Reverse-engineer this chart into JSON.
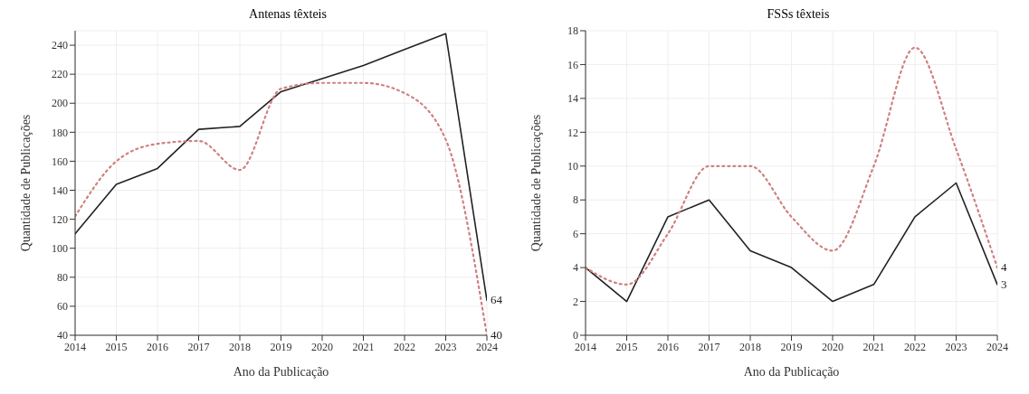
{
  "chart_data": [
    {
      "type": "line",
      "title": "Antenas têxteis",
      "xlabel": "Ano da Publicação",
      "ylabel": "Quantidade de Publicações",
      "x": [
        2014,
        2015,
        2016,
        2017,
        2018,
        2019,
        2020,
        2021,
        2022,
        2023,
        2024
      ],
      "xlim": [
        2014,
        2024
      ],
      "xticks": [
        2014,
        2015,
        2016,
        2017,
        2018,
        2019,
        2020,
        2021,
        2022,
        2023,
        2024
      ],
      "ylim": [
        40,
        250
      ],
      "yticks": [
        40,
        60,
        80,
        100,
        120,
        140,
        160,
        180,
        200,
        220,
        240
      ],
      "grid": true,
      "legend": false,
      "series": [
        {
          "color": "#222222",
          "line_style": "solid",
          "values": [
            110,
            144,
            155,
            182,
            184,
            208,
            217,
            226,
            237,
            248,
            64
          ],
          "value_labels": [
            null,
            null,
            null,
            null,
            null,
            null,
            null,
            null,
            null,
            null,
            "64"
          ]
        },
        {
          "type": "line",
          "color": "#d08080",
          "line_style": "dotted",
          "values": [
            122,
            160,
            172,
            174,
            154,
            210,
            214,
            214,
            207,
            175,
            40
          ],
          "value_labels": [
            null,
            null,
            null,
            null,
            null,
            null,
            null,
            null,
            null,
            null,
            "40"
          ]
        }
      ]
    },
    {
      "type": "line",
      "title": "FSSs têxteis",
      "xlabel": "Ano da Publicação",
      "ylabel": "Quantidade de Publicações",
      "x": [
        2014,
        2015,
        2016,
        2017,
        2018,
        2019,
        2020,
        2021,
        2022,
        2023,
        2024
      ],
      "xlim": [
        2014,
        2024
      ],
      "xticks": [
        2014,
        2015,
        2016,
        2017,
        2018,
        2019,
        2020,
        2021,
        2022,
        2023,
        2024
      ],
      "ylim": [
        0,
        18
      ],
      "yticks": [
        0,
        2,
        4,
        6,
        8,
        10,
        12,
        14,
        16,
        18
      ],
      "grid": true,
      "legend": false,
      "series": [
        {
          "color": "#222222",
          "line_style": "solid",
          "values": [
            4,
            2,
            7,
            8,
            5,
            4,
            2,
            3,
            7,
            9,
            3
          ],
          "value_labels": [
            null,
            null,
            null,
            null,
            null,
            null,
            null,
            null,
            null,
            null,
            "3"
          ]
        },
        {
          "type": "line",
          "color": "#d08080",
          "line_style": "dotted",
          "values": [
            4,
            3,
            6,
            10,
            10,
            7,
            5,
            10,
            17,
            11,
            4
          ],
          "value_labels": [
            null,
            null,
            null,
            null,
            null,
            null,
            null,
            null,
            null,
            null,
            "4"
          ]
        }
      ]
    }
  ]
}
